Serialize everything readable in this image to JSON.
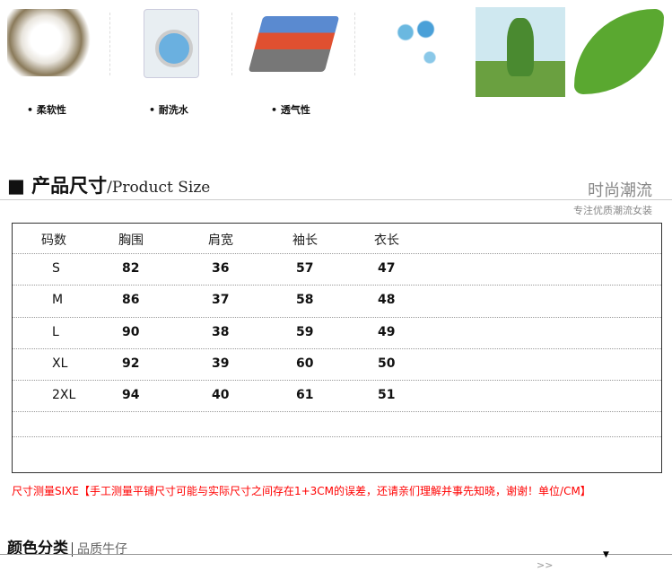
{
  "features": [
    "• 柔软性",
    "• 耐洗水",
    "• 透气性"
  ],
  "section": {
    "title_cn": "产品尺寸",
    "title_en": "/Product Size",
    "right_title": "时尚潮流",
    "right_sub": "专注优质潮流女装"
  },
  "table": {
    "headers": [
      "码数",
      "胸围",
      "肩宽",
      "袖长",
      "衣长"
    ],
    "rows": [
      [
        "S",
        "82",
        "36",
        "57",
        "47"
      ],
      [
        "M",
        "86",
        "37",
        "58",
        "48"
      ],
      [
        "L",
        "90",
        "38",
        "59",
        "49"
      ],
      [
        "XL",
        "92",
        "39",
        "60",
        "50"
      ],
      [
        "2XL",
        "94",
        "40",
        "61",
        "51"
      ]
    ]
  },
  "note": "尺寸测量SIXE【手工测量平铺尺寸可能与实际尺寸之间存在1+3CM的误差，还请亲们理解并事先知晓，谢谢！单位/CM】",
  "color_section": {
    "title": "颜色分类",
    "sub": "品质牛仔"
  },
  "more": ">>"
}
